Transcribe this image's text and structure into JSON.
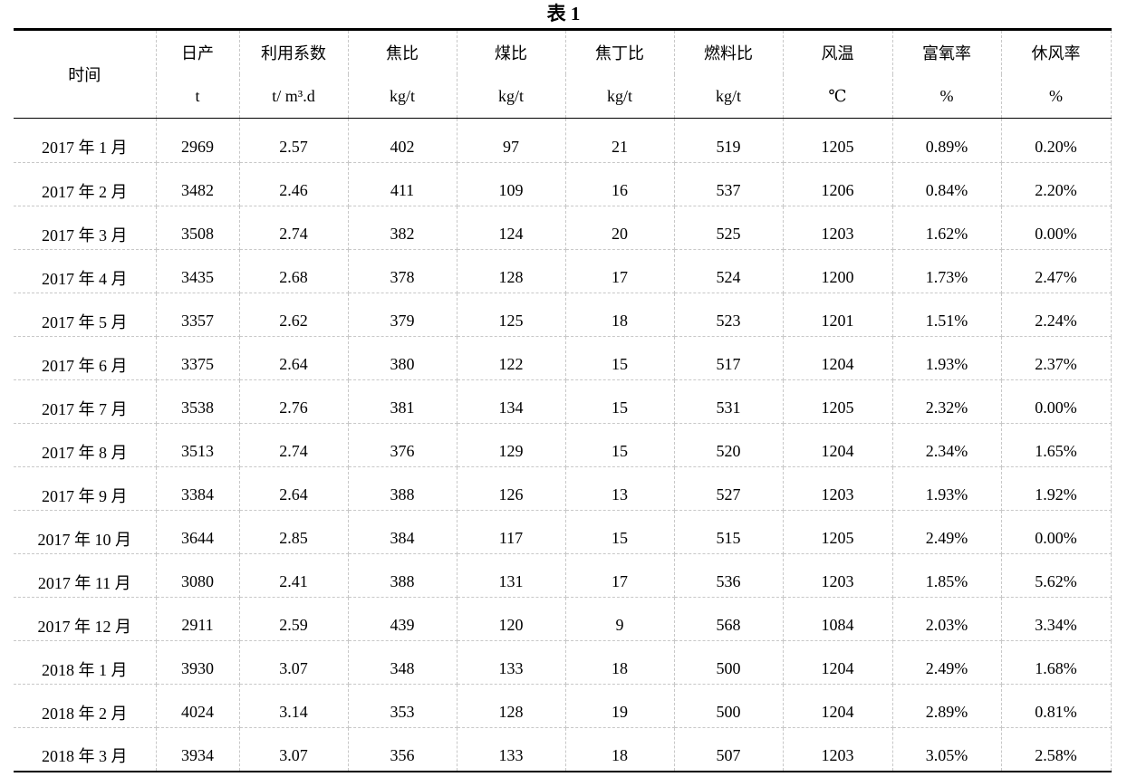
{
  "title": "表 1",
  "table": {
    "headers": [
      {
        "name": "时间",
        "unit": ""
      },
      {
        "name": "日产",
        "unit": "t"
      },
      {
        "name": "利用系数",
        "unit": "t/ m³.d"
      },
      {
        "name": "焦比",
        "unit": "kg/t"
      },
      {
        "name": "煤比",
        "unit": "kg/t"
      },
      {
        "name": "焦丁比",
        "unit": "kg/t"
      },
      {
        "name": "燃料比",
        "unit": "kg/t"
      },
      {
        "name": "风温",
        "unit": "℃"
      },
      {
        "name": "富氧率",
        "unit": "%"
      },
      {
        "name": "休风率",
        "unit": "%"
      }
    ],
    "rows": [
      [
        "2017 年 1 月",
        "2969",
        "2.57",
        "402",
        "97",
        "21",
        "519",
        "1205",
        "0.89%",
        "0.20%"
      ],
      [
        "2017 年 2 月",
        "3482",
        "2.46",
        "411",
        "109",
        "16",
        "537",
        "1206",
        "0.84%",
        "2.20%"
      ],
      [
        "2017 年 3 月",
        "3508",
        "2.74",
        "382",
        "124",
        "20",
        "525",
        "1203",
        "1.62%",
        "0.00%"
      ],
      [
        "2017 年 4 月",
        "3435",
        "2.68",
        "378",
        "128",
        "17",
        "524",
        "1200",
        "1.73%",
        "2.47%"
      ],
      [
        "2017 年 5 月",
        "3357",
        "2.62",
        "379",
        "125",
        "18",
        "523",
        "1201",
        "1.51%",
        "2.24%"
      ],
      [
        "2017 年 6 月",
        "3375",
        "2.64",
        "380",
        "122",
        "15",
        "517",
        "1204",
        "1.93%",
        "2.37%"
      ],
      [
        "2017 年 7 月",
        "3538",
        "2.76",
        "381",
        "134",
        "15",
        "531",
        "1205",
        "2.32%",
        "0.00%"
      ],
      [
        "2017 年 8 月",
        "3513",
        "2.74",
        "376",
        "129",
        "15",
        "520",
        "1204",
        "2.34%",
        "1.65%"
      ],
      [
        "2017 年 9 月",
        "3384",
        "2.64",
        "388",
        "126",
        "13",
        "527",
        "1203",
        "1.93%",
        "1.92%"
      ],
      [
        "2017 年 10 月",
        "3644",
        "2.85",
        "384",
        "117",
        "15",
        "515",
        "1205",
        "2.49%",
        "0.00%"
      ],
      [
        "2017 年 11 月",
        "3080",
        "2.41",
        "388",
        "131",
        "17",
        "536",
        "1203",
        "1.85%",
        "5.62%"
      ],
      [
        "2017 年 12 月",
        "2911",
        "2.59",
        "439",
        "120",
        "9",
        "568",
        "1084",
        "2.03%",
        "3.34%"
      ],
      [
        "2018 年 1 月",
        "3930",
        "3.07",
        "348",
        "133",
        "18",
        "500",
        "1204",
        "2.49%",
        "1.68%"
      ],
      [
        "2018 年 2 月",
        "4024",
        "3.14",
        "353",
        "128",
        "19",
        "500",
        "1204",
        "2.89%",
        "0.81%"
      ],
      [
        "2018 年 3 月",
        "3934",
        "3.07",
        "356",
        "133",
        "18",
        "507",
        "1203",
        "3.05%",
        "2.58%"
      ]
    ]
  }
}
